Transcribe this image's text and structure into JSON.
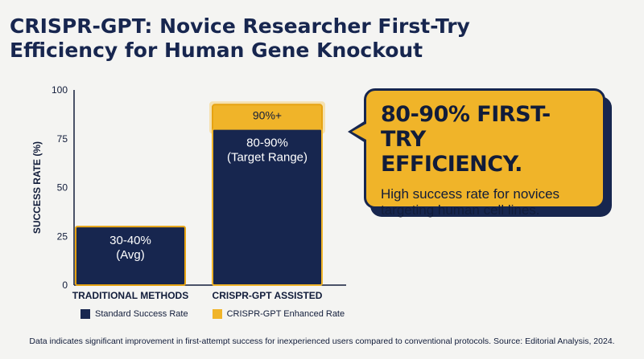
{
  "title": "CRISPR-GPT: Novice Researcher First-Try Efficiency for Human Gene Knockout",
  "chart_data": {
    "type": "bar",
    "ylabel": "SUCCESS RATE (%)",
    "ylim": [
      0,
      100
    ],
    "yticks": [
      0,
      25,
      50,
      75,
      100
    ],
    "categories": [
      "TRADITIONAL METHODS",
      "CRISPR-GPT ASSISTED"
    ],
    "series": [
      {
        "name": "Standard Success Rate",
        "color": "#17264f",
        "values": [
          30,
          80
        ],
        "labels": [
          [
            "30-40%",
            "(Avg)"
          ],
          [
            "80-90%",
            "(Target Range)"
          ]
        ]
      },
      {
        "name": "CRISPR-GPT Enhanced Rate",
        "color": "#f0b429",
        "values": [
          0,
          10
        ],
        "labels": [
          [],
          [
            "90%+"
          ]
        ]
      }
    ],
    "grid": false,
    "legend": "bottom"
  },
  "callout": {
    "headline_line1": "80-90% FIRST-TRY",
    "headline_line2": "EFFICIENCY.",
    "body_line1": "High success rate for novices",
    "body_line2": "targeting human cell lines."
  },
  "legend": {
    "items": [
      {
        "label": "Standard Success Rate",
        "color": "#17264f"
      },
      {
        "label": "CRISPR-GPT Enhanced Rate",
        "color": "#f0b429"
      }
    ]
  },
  "footer": "Data indicates significant improvement in first-attempt success for inexperienced users compared to conventional protocols. Source: Editorial Analysis, 2024."
}
